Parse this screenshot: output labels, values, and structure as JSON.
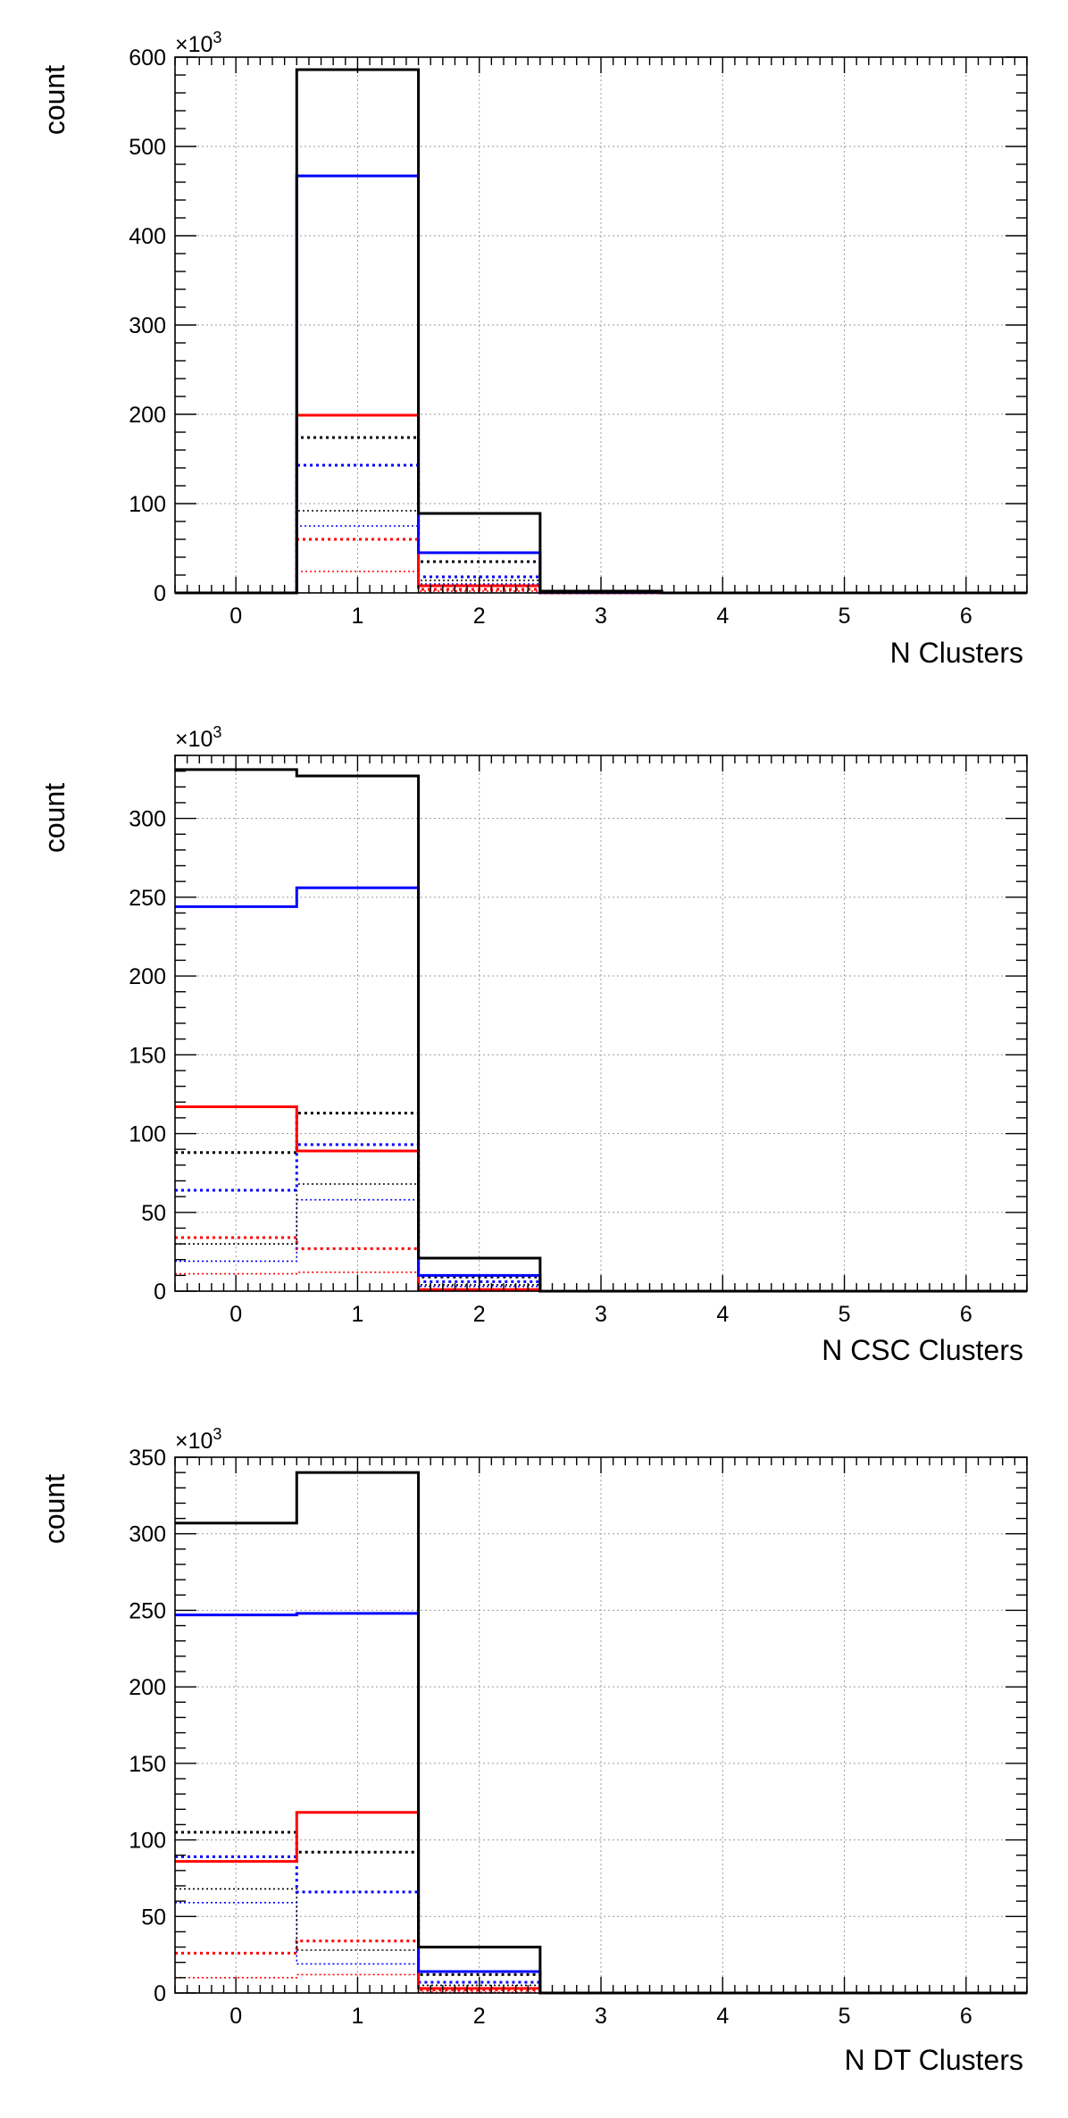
{
  "chart_data": [
    {
      "type": "histogram",
      "xlabel": "N Clusters",
      "ylabel": "count",
      "y_scale_label": "×10",
      "y_scale_exp": "3",
      "xlim": [
        -0.5,
        6.5
      ],
      "ylim": [
        0,
        600
      ],
      "xticks": [
        "0",
        "1",
        "2",
        "3",
        "4",
        "5",
        "6"
      ],
      "yticks": [
        "0",
        "100",
        "200",
        "300",
        "400",
        "500",
        "600"
      ],
      "ytick_values": [
        0,
        100,
        200,
        300,
        400,
        500,
        600
      ],
      "grid": true,
      "series": [
        {
          "color": "#000000",
          "style": "solid",
          "values": [
            0,
            586,
            89,
            2,
            0,
            0,
            0
          ]
        },
        {
          "color": "#0000ff",
          "style": "solid",
          "values": [
            0,
            467,
            45,
            0.5,
            0,
            0,
            0
          ]
        },
        {
          "color": "#ff0000",
          "style": "solid",
          "values": [
            0,
            199,
            8,
            0.3,
            0,
            0,
            0
          ]
        },
        {
          "color": "#000000",
          "style": "dotted",
          "values": [
            0,
            174,
            35,
            0.3,
            0,
            0,
            0
          ]
        },
        {
          "color": "#0000ff",
          "style": "dotted",
          "values": [
            0,
            143,
            18,
            0,
            0,
            0,
            0
          ]
        },
        {
          "color": "#000000",
          "style": "dotted-thin",
          "values": [
            0,
            92,
            14,
            0,
            0,
            0,
            0
          ]
        },
        {
          "color": "#0000ff",
          "style": "dotted-thin",
          "values": [
            0,
            75,
            10,
            0,
            0,
            0,
            0
          ]
        },
        {
          "color": "#ff0000",
          "style": "dotted",
          "values": [
            0,
            60,
            4,
            0,
            0,
            0,
            0
          ]
        },
        {
          "color": "#ff0000",
          "style": "dotted-thin",
          "values": [
            0,
            24,
            2,
            0,
            0,
            0,
            0
          ]
        }
      ]
    },
    {
      "type": "histogram",
      "xlabel": "N CSC Clusters",
      "ylabel": "count",
      "y_scale_label": "×10",
      "y_scale_exp": "3",
      "xlim": [
        -0.5,
        6.5
      ],
      "ylim": [
        0,
        340
      ],
      "xticks": [
        "0",
        "1",
        "2",
        "3",
        "4",
        "5",
        "6"
      ],
      "yticks": [
        "0",
        "50",
        "100",
        "150",
        "200",
        "250",
        "300"
      ],
      "ytick_values": [
        0,
        50,
        100,
        150,
        200,
        250,
        300
      ],
      "grid": true,
      "series": [
        {
          "color": "#000000",
          "style": "solid",
          "values": [
            331,
            327,
            21,
            0,
            0,
            0,
            0
          ]
        },
        {
          "color": "#0000ff",
          "style": "solid",
          "values": [
            244,
            256,
            10,
            0,
            0,
            0,
            0
          ]
        },
        {
          "color": "#ff0000",
          "style": "solid",
          "values": [
            117,
            89,
            1,
            0,
            0,
            0,
            0
          ]
        },
        {
          "color": "#000000",
          "style": "dotted",
          "values": [
            88,
            113,
            9,
            0,
            0,
            0,
            0
          ]
        },
        {
          "color": "#0000ff",
          "style": "dotted",
          "values": [
            64,
            93,
            6,
            0,
            0,
            0,
            0
          ]
        },
        {
          "color": "#000000",
          "style": "dotted-thin",
          "values": [
            30,
            68,
            4,
            0,
            0,
            0,
            0
          ]
        },
        {
          "color": "#0000ff",
          "style": "dotted-thin",
          "values": [
            19,
            58,
            3,
            0,
            0,
            0,
            0
          ]
        },
        {
          "color": "#ff0000",
          "style": "dotted",
          "values": [
            34,
            27,
            1,
            0,
            0,
            0,
            0
          ]
        },
        {
          "color": "#ff0000",
          "style": "dotted-thin",
          "values": [
            11,
            12,
            0.5,
            0,
            0,
            0,
            0
          ]
        }
      ]
    },
    {
      "type": "histogram",
      "xlabel": "N DT Clusters",
      "ylabel": "count",
      "y_scale_label": "×10",
      "y_scale_exp": "3",
      "xlim": [
        -0.5,
        6.5
      ],
      "ylim": [
        0,
        350
      ],
      "xticks": [
        "0",
        "1",
        "2",
        "3",
        "4",
        "5",
        "6"
      ],
      "yticks": [
        "0",
        "50",
        "100",
        "150",
        "200",
        "250",
        "300",
        "350"
      ],
      "ytick_values": [
        0,
        50,
        100,
        150,
        200,
        250,
        300,
        350
      ],
      "grid": true,
      "series": [
        {
          "color": "#000000",
          "style": "solid",
          "values": [
            307,
            340,
            30,
            0,
            0,
            0,
            0
          ]
        },
        {
          "color": "#0000ff",
          "style": "solid",
          "values": [
            247,
            248,
            14,
            0,
            0,
            0,
            0
          ]
        },
        {
          "color": "#ff0000",
          "style": "solid",
          "values": [
            86,
            118,
            3,
            0,
            0,
            0,
            0
          ]
        },
        {
          "color": "#000000",
          "style": "dotted",
          "values": [
            105,
            92,
            12,
            0,
            0,
            0,
            0
          ]
        },
        {
          "color": "#0000ff",
          "style": "dotted",
          "values": [
            89,
            66,
            7,
            0,
            0,
            0,
            0
          ]
        },
        {
          "color": "#000000",
          "style": "dotted-thin",
          "values": [
            68,
            28,
            5,
            0,
            0,
            0,
            0
          ]
        },
        {
          "color": "#0000ff",
          "style": "dotted-thin",
          "values": [
            59,
            19,
            3,
            0,
            0,
            0,
            0
          ]
        },
        {
          "color": "#ff0000",
          "style": "dotted",
          "values": [
            26,
            34,
            2,
            0,
            0,
            0,
            0
          ]
        },
        {
          "color": "#ff0000",
          "style": "dotted-thin",
          "values": [
            10,
            12,
            0.5,
            0,
            0,
            0,
            0
          ]
        }
      ]
    }
  ]
}
